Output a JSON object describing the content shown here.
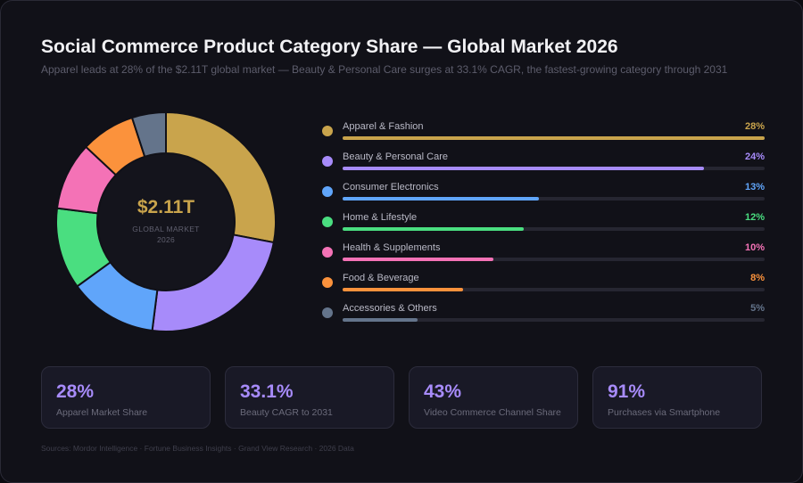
{
  "title": "Social Commerce Product Category Share — Global Market 2026",
  "subtitle": "Apparel leads at 28% of the $2.11T global market — Beauty & Personal Care surges at 33.1% CAGR, the fastest-growing category through 2031",
  "center": {
    "value": "$2.11T",
    "label_line1": "GLOBAL MARKET",
    "label_line2": "2026"
  },
  "chart_data": {
    "type": "pie",
    "title": "Social Commerce Product Category Share — Global Market 2026",
    "categories": [
      "Apparel & Fashion",
      "Beauty & Personal Care",
      "Consumer Electronics",
      "Home & Lifestyle",
      "Health & Supplements",
      "Food & Beverage",
      "Accessories & Others"
    ],
    "values": [
      28,
      24,
      13,
      12,
      10,
      8,
      5
    ],
    "labels": [
      "28%",
      "24%",
      "13%",
      "12%",
      "10%",
      "8%",
      "5%"
    ],
    "colors": [
      "#c9a44c",
      "#a78bfa",
      "#60a5fa",
      "#4ade80",
      "#f472b6",
      "#fb923c",
      "#64748b"
    ],
    "legend": "right"
  },
  "stats": [
    {
      "value": "28%",
      "label": "Apparel Market Share"
    },
    {
      "value": "33.1%",
      "label": "Beauty CAGR to 2031"
    },
    {
      "value": "43%",
      "label": "Video Commerce Channel Share"
    },
    {
      "value": "91%",
      "label": "Purchases via Smartphone"
    }
  ],
  "sources": "Sources: Mordor Intelligence  ·  Fortune Business Insights  ·  Grand View Research  ·  2026 Data"
}
